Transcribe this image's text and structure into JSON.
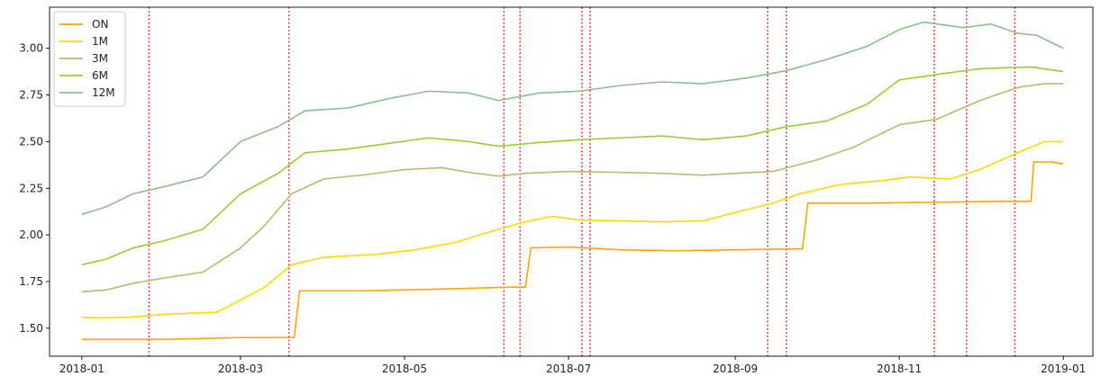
{
  "chart_data": {
    "type": "line",
    "title": "",
    "xlabel": "",
    "ylabel": "",
    "x_type": "date",
    "xlim": [
      "2017-12-20",
      "2019-01-12"
    ],
    "ylim": [
      1.35,
      3.22
    ],
    "x_ticks": [
      {
        "date": "2018-01-01",
        "label": "2018-01"
      },
      {
        "date": "2018-03-01",
        "label": "2018-03"
      },
      {
        "date": "2018-05-01",
        "label": "2018-05"
      },
      {
        "date": "2018-07-01",
        "label": "2018-07"
      },
      {
        "date": "2018-09-01",
        "label": "2018-09"
      },
      {
        "date": "2018-11-01",
        "label": "2018-11"
      },
      {
        "date": "2019-01-01",
        "label": "2019-01"
      }
    ],
    "y_ticks": [
      {
        "value": 1.5,
        "label": "1.50"
      },
      {
        "value": 1.75,
        "label": "1.75"
      },
      {
        "value": 2.0,
        "label": "2.00"
      },
      {
        "value": 2.25,
        "label": "2.25"
      },
      {
        "value": 2.5,
        "label": "2.50"
      },
      {
        "value": 2.75,
        "label": "2.75"
      },
      {
        "value": 3.0,
        "label": "3.00"
      }
    ],
    "grid": false,
    "legend_position": "top-left",
    "vlines": {
      "color": "#e31a1c",
      "style": "dotted",
      "dates": [
        "2018-01-26",
        "2018-03-19",
        "2018-06-07",
        "2018-06-13",
        "2018-07-06",
        "2018-07-09",
        "2018-09-13",
        "2018-09-20",
        "2018-11-14",
        "2018-11-26",
        "2018-12-14"
      ]
    },
    "series": [
      {
        "name": "ON",
        "color": "#ffa500",
        "step": true,
        "points": [
          [
            "2018-01-01",
            1.44
          ],
          [
            "2018-02-01",
            1.44
          ],
          [
            "2018-03-01",
            1.45
          ],
          [
            "2018-03-21",
            1.45
          ],
          [
            "2018-03-23",
            1.7
          ],
          [
            "2018-04-15",
            1.7
          ],
          [
            "2018-05-15",
            1.71
          ],
          [
            "2018-06-10",
            1.72
          ],
          [
            "2018-06-15",
            1.72
          ],
          [
            "2018-06-17",
            1.93
          ],
          [
            "2018-07-01",
            1.935
          ],
          [
            "2018-07-20",
            1.92
          ],
          [
            "2018-08-10",
            1.915
          ],
          [
            "2018-09-01",
            1.92
          ],
          [
            "2018-09-26",
            1.925
          ],
          [
            "2018-09-28",
            2.17
          ],
          [
            "2018-10-20",
            2.17
          ],
          [
            "2018-11-15",
            2.175
          ],
          [
            "2018-12-10",
            2.18
          ],
          [
            "2018-12-20",
            2.18
          ],
          [
            "2018-12-21",
            2.39
          ],
          [
            "2018-12-28",
            2.39
          ],
          [
            "2019-01-01",
            2.38
          ]
        ]
      },
      {
        "name": "1M",
        "color": "#ffd700",
        "points": [
          [
            "2018-01-01",
            1.56
          ],
          [
            "2018-01-05",
            1.555
          ],
          [
            "2018-01-20",
            1.56
          ],
          [
            "2018-02-01",
            1.575
          ],
          [
            "2018-02-20",
            1.585
          ],
          [
            "2018-03-01",
            1.65
          ],
          [
            "2018-03-10",
            1.72
          ],
          [
            "2018-03-20",
            1.84
          ],
          [
            "2018-04-01",
            1.88
          ],
          [
            "2018-04-20",
            1.895
          ],
          [
            "2018-05-05",
            1.92
          ],
          [
            "2018-05-20",
            1.96
          ],
          [
            "2018-06-05",
            2.03
          ],
          [
            "2018-06-15",
            2.07
          ],
          [
            "2018-06-25",
            2.1
          ],
          [
            "2018-07-05",
            2.08
          ],
          [
            "2018-07-20",
            2.075
          ],
          [
            "2018-08-05",
            2.07
          ],
          [
            "2018-08-20",
            2.075
          ],
          [
            "2018-09-01",
            2.12
          ],
          [
            "2018-09-15",
            2.17
          ],
          [
            "2018-09-25",
            2.22
          ],
          [
            "2018-10-10",
            2.27
          ],
          [
            "2018-10-25",
            2.29
          ],
          [
            "2018-11-05",
            2.31
          ],
          [
            "2018-11-20",
            2.3
          ],
          [
            "2018-12-01",
            2.35
          ],
          [
            "2018-12-15",
            2.44
          ],
          [
            "2018-12-25",
            2.5
          ],
          [
            "2019-01-01",
            2.5
          ]
        ]
      },
      {
        "name": "3M",
        "color": "#bdb76b",
        "points": [
          [
            "2018-01-01",
            1.695
          ],
          [
            "2018-01-10",
            1.705
          ],
          [
            "2018-01-20",
            1.74
          ],
          [
            "2018-02-01",
            1.77
          ],
          [
            "2018-02-15",
            1.8
          ],
          [
            "2018-03-01",
            1.93
          ],
          [
            "2018-03-10",
            2.05
          ],
          [
            "2018-03-20",
            2.22
          ],
          [
            "2018-04-01",
            2.3
          ],
          [
            "2018-04-15",
            2.32
          ],
          [
            "2018-05-01",
            2.35
          ],
          [
            "2018-05-15",
            2.36
          ],
          [
            "2018-05-25",
            2.335
          ],
          [
            "2018-06-05",
            2.315
          ],
          [
            "2018-06-15",
            2.33
          ],
          [
            "2018-07-01",
            2.34
          ],
          [
            "2018-07-20",
            2.335
          ],
          [
            "2018-08-05",
            2.33
          ],
          [
            "2018-08-20",
            2.32
          ],
          [
            "2018-09-01",
            2.33
          ],
          [
            "2018-09-15",
            2.34
          ],
          [
            "2018-10-01",
            2.4
          ],
          [
            "2018-10-15",
            2.47
          ],
          [
            "2018-11-01",
            2.59
          ],
          [
            "2018-11-15",
            2.62
          ],
          [
            "2018-12-01",
            2.72
          ],
          [
            "2018-12-15",
            2.79
          ],
          [
            "2018-12-25",
            2.81
          ],
          [
            "2019-01-01",
            2.81
          ]
        ]
      },
      {
        "name": "6M",
        "color": "#9acd32",
        "points": [
          [
            "2018-01-01",
            1.84
          ],
          [
            "2018-01-10",
            1.87
          ],
          [
            "2018-01-20",
            1.93
          ],
          [
            "2018-02-01",
            1.97
          ],
          [
            "2018-02-15",
            2.03
          ],
          [
            "2018-03-01",
            2.22
          ],
          [
            "2018-03-15",
            2.33
          ],
          [
            "2018-03-25",
            2.44
          ],
          [
            "2018-04-10",
            2.46
          ],
          [
            "2018-04-25",
            2.49
          ],
          [
            "2018-05-10",
            2.52
          ],
          [
            "2018-05-25",
            2.5
          ],
          [
            "2018-06-05",
            2.475
          ],
          [
            "2018-06-20",
            2.495
          ],
          [
            "2018-07-05",
            2.51
          ],
          [
            "2018-07-20",
            2.52
          ],
          [
            "2018-08-05",
            2.53
          ],
          [
            "2018-08-20",
            2.51
          ],
          [
            "2018-09-05",
            2.53
          ],
          [
            "2018-09-20",
            2.58
          ],
          [
            "2018-10-05",
            2.61
          ],
          [
            "2018-10-20",
            2.7
          ],
          [
            "2018-11-01",
            2.83
          ],
          [
            "2018-11-15",
            2.86
          ],
          [
            "2018-12-01",
            2.89
          ],
          [
            "2018-12-10",
            2.895
          ],
          [
            "2018-12-20",
            2.9
          ],
          [
            "2019-01-01",
            2.875
          ]
        ]
      },
      {
        "name": "12M",
        "color": "#8fbc8f",
        "points": [
          [
            "2018-01-01",
            2.11
          ],
          [
            "2018-01-10",
            2.15
          ],
          [
            "2018-01-20",
            2.22
          ],
          [
            "2018-02-01",
            2.26
          ],
          [
            "2018-02-15",
            2.31
          ],
          [
            "2018-03-01",
            2.5
          ],
          [
            "2018-03-15",
            2.58
          ],
          [
            "2018-03-25",
            2.665
          ],
          [
            "2018-04-10",
            2.68
          ],
          [
            "2018-04-25",
            2.73
          ],
          [
            "2018-05-10",
            2.77
          ],
          [
            "2018-05-25",
            2.76
          ],
          [
            "2018-06-05",
            2.72
          ],
          [
            "2018-06-20",
            2.76
          ],
          [
            "2018-07-05",
            2.77
          ],
          [
            "2018-07-20",
            2.8
          ],
          [
            "2018-08-05",
            2.82
          ],
          [
            "2018-08-20",
            2.81
          ],
          [
            "2018-09-05",
            2.84
          ],
          [
            "2018-09-20",
            2.88
          ],
          [
            "2018-10-05",
            2.94
          ],
          [
            "2018-10-20",
            3.01
          ],
          [
            "2018-11-01",
            3.1
          ],
          [
            "2018-11-10",
            3.14
          ],
          [
            "2018-11-25",
            3.11
          ],
          [
            "2018-12-05",
            3.13
          ],
          [
            "2018-12-15",
            3.08
          ],
          [
            "2018-12-22",
            3.07
          ],
          [
            "2019-01-01",
            3.0
          ]
        ]
      }
    ]
  }
}
